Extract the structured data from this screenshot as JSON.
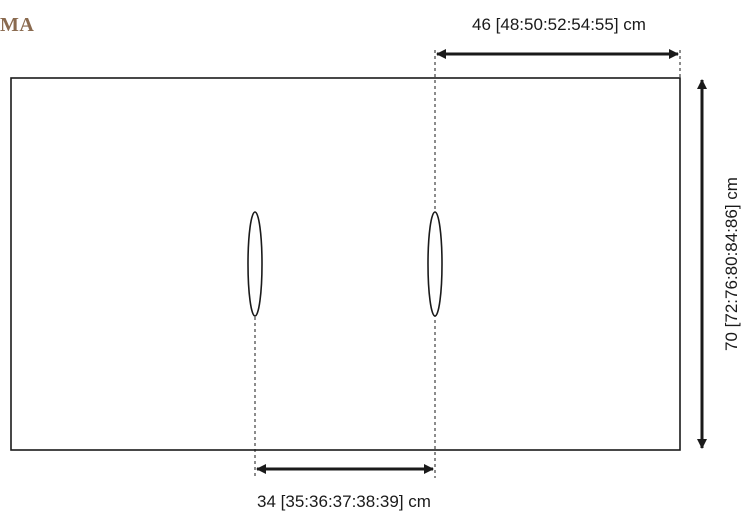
{
  "diagram": {
    "title": "MA",
    "colors": {
      "title": "#8a6a4f",
      "lines": "#1a1a1a"
    },
    "dimensions": {
      "top_width": "46 [48:50:52:54:55] cm",
      "bottom_width": "34 [35:36:37:38:39] cm",
      "height": "70 [72:76:80:84:86] cm"
    }
  }
}
